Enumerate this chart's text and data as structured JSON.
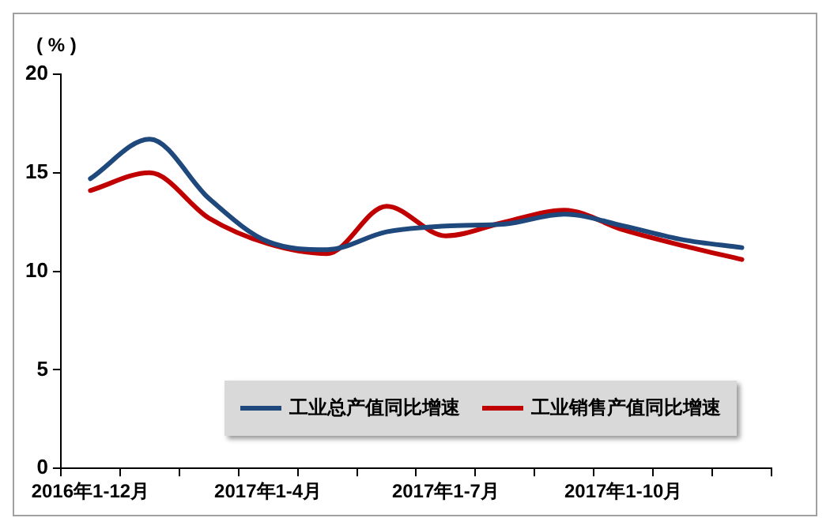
{
  "chart_data": {
    "type": "line",
    "ylabel": "( % )",
    "categories": [
      "2016年1-12月",
      null,
      null,
      "2017年1-4月",
      null,
      null,
      "2017年1-7月",
      null,
      null,
      "2017年1-10月",
      null,
      null
    ],
    "series": [
      {
        "name": "工业总产值同比增速",
        "color": "#1f497d",
        "values": [
          14.7,
          16.7,
          13.7,
          11.5,
          11.1,
          12.0,
          12.3,
          12.4,
          12.9,
          12.3,
          11.6,
          11.2
        ]
      },
      {
        "name": "工业销售产值同比增速",
        "color": "#c00000",
        "values": [
          14.1,
          15.0,
          12.7,
          11.4,
          10.9,
          13.3,
          11.8,
          12.5,
          13.1,
          12.1,
          11.3,
          10.6
        ]
      }
    ],
    "ylim": [
      0,
      20
    ],
    "yticks": [
      0,
      5,
      10,
      15,
      20
    ],
    "grid": false,
    "legend": "bottom right",
    "marker": "none",
    "line_style": "solid"
  }
}
